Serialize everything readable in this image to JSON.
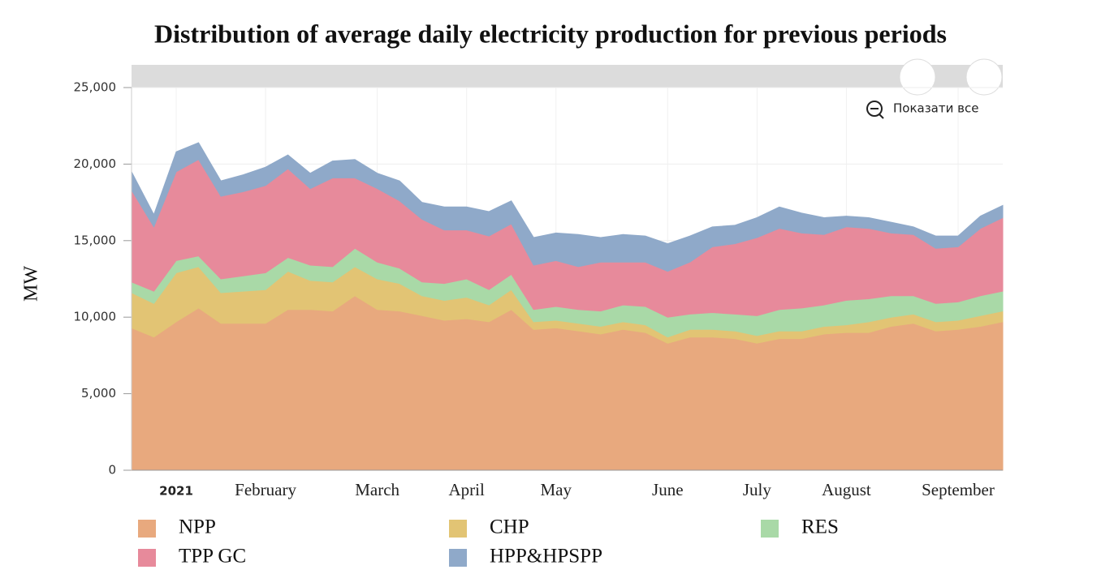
{
  "chart_data": {
    "type": "area",
    "stacked": true,
    "title": "Distribution of average daily electricity production for previous periods",
    "y_label": "MW",
    "reset_zoom": "Показати все",
    "categories": [
      null,
      null,
      "2021",
      null,
      null,
      null,
      "February",
      null,
      null,
      null,
      null,
      "March",
      null,
      null,
      null,
      "April",
      null,
      null,
      null,
      "May",
      null,
      null,
      null,
      null,
      "June",
      null,
      null,
      null,
      "July",
      null,
      null,
      null,
      "August",
      null,
      null,
      null,
      null,
      "September",
      null,
      null
    ],
    "ylim": [
      0,
      25000
    ],
    "yticks": [
      0,
      {
        "value": 5000,
        "label": "5,000"
      },
      {
        "value": 10000,
        "label": "10,000"
      },
      {
        "value": 15000,
        "label": "15,000"
      },
      {
        "value": 20000,
        "label": "20,000"
      },
      {
        "value": 25000,
        "label": "25,000"
      }
    ],
    "grid": true,
    "legend": "bottom",
    "series": [
      {
        "name": "NPP",
        "color": "#e8a97e",
        "values": [
          9300,
          8700,
          9700,
          10600,
          9600,
          9600,
          9600,
          10500,
          10500,
          10400,
          11400,
          10500,
          10400,
          10100,
          9800,
          9900,
          9700,
          10500,
          9200,
          9300,
          9100,
          8900,
          9200,
          9000,
          8300,
          8700,
          8700,
          8600,
          8300,
          8600,
          8600,
          8900,
          9000,
          9000,
          9400,
          9600,
          9100,
          9200,
          9400,
          9700
        ]
      },
      {
        "name": "CHP",
        "color": "#e2c474",
        "values": [
          2300,
          2200,
          3200,
          2700,
          2000,
          2100,
          2200,
          2500,
          1900,
          1900,
          1900,
          2000,
          1800,
          1300,
          1300,
          1400,
          1100,
          1300,
          500,
          500,
          500,
          500,
          500,
          500,
          400,
          500,
          500,
          500,
          500,
          500,
          500,
          500,
          500,
          700,
          600,
          600,
          600,
          600,
          700,
          700
        ]
      },
      {
        "name": "RES",
        "color": "#a9d9a7",
        "values": [
          700,
          800,
          800,
          700,
          900,
          1000,
          1100,
          900,
          1000,
          1000,
          1200,
          1100,
          1000,
          900,
          1100,
          1200,
          1000,
          1000,
          800,
          900,
          900,
          1000,
          1100,
          1200,
          1300,
          1000,
          1100,
          1100,
          1300,
          1400,
          1500,
          1400,
          1600,
          1500,
          1400,
          1200,
          1200,
          1200,
          1300,
          1300
        ]
      },
      {
        "name": "TPP GC",
        "color": "#e78a9b",
        "values": [
          6000,
          4200,
          5800,
          6300,
          5400,
          5500,
          5700,
          5800,
          5000,
          5800,
          4600,
          4800,
          4400,
          4100,
          3500,
          3200,
          3500,
          3300,
          2900,
          3000,
          2800,
          3200,
          2800,
          2900,
          3000,
          3400,
          4300,
          4600,
          5100,
          5300,
          4900,
          4600,
          4800,
          4600,
          4100,
          4000,
          3600,
          3600,
          4400,
          4800
        ]
      },
      {
        "name": "HPP&HPSPP",
        "color": "#8fa9c9",
        "values": [
          1200,
          800,
          1300,
          1100,
          1000,
          1100,
          1200,
          900,
          1000,
          1100,
          1200,
          1000,
          1300,
          1100,
          1500,
          1500,
          1600,
          1500,
          1800,
          1800,
          2100,
          1600,
          1800,
          1700,
          1800,
          1700,
          1300,
          1200,
          1300,
          1400,
          1300,
          1100,
          700,
          700,
          700,
          500,
          800,
          700,
          800,
          800
        ]
      }
    ]
  }
}
